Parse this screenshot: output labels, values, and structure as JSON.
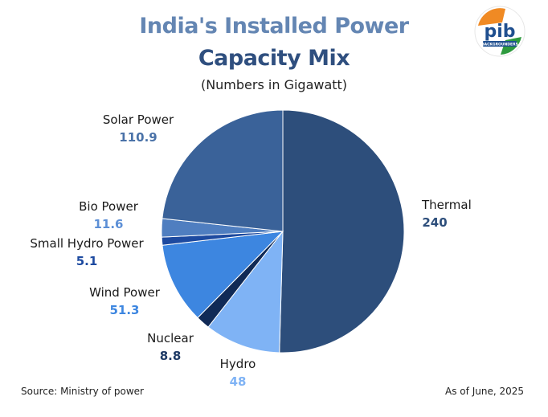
{
  "header": {
    "title_line1": "India's Installed Power",
    "title_line2": "Capacity Mix",
    "subtitle": "(Numbers in Gigawatt)"
  },
  "footer": {
    "source": "Source: Ministry of power",
    "as_of": "As of June, 2025"
  },
  "logo": {
    "text": "pib",
    "subtext": "BACKGROUNDERS",
    "icon": "pib-backgrounders-logo"
  },
  "chart_data": {
    "type": "pie",
    "title": "India's Installed Power Capacity Mix",
    "unit": "Gigawatt",
    "slices": [
      {
        "name": "Thermal",
        "value": 240,
        "value_label": "240",
        "color": "#2d4e7b",
        "label_color": "#2d4e7b"
      },
      {
        "name": "Hydro",
        "value": 48,
        "value_label": "48",
        "color": "#7fb3f5",
        "label_color": "#7fb3f5"
      },
      {
        "name": "Nuclear",
        "value": 8.8,
        "value_label": "8.8",
        "color": "#102a56",
        "label_color": "#1e3a66"
      },
      {
        "name": "Wind Power",
        "value": 51.3,
        "value_label": "51.3",
        "color": "#3d86e0",
        "label_color": "#3d86e0"
      },
      {
        "name": "Small Hydro Power",
        "value": 5.1,
        "value_label": "5.1",
        "color": "#1d4aa0",
        "label_color": "#1d4aa0"
      },
      {
        "name": "Bio Power",
        "value": 11.6,
        "value_label": "11.6",
        "color": "#4f7ec0",
        "label_color": "#5c8fd6"
      },
      {
        "name": "Solar Power",
        "value": 110.9,
        "value_label": "110.9",
        "color": "#3a6299",
        "label_color": "#4a72a8"
      }
    ]
  }
}
